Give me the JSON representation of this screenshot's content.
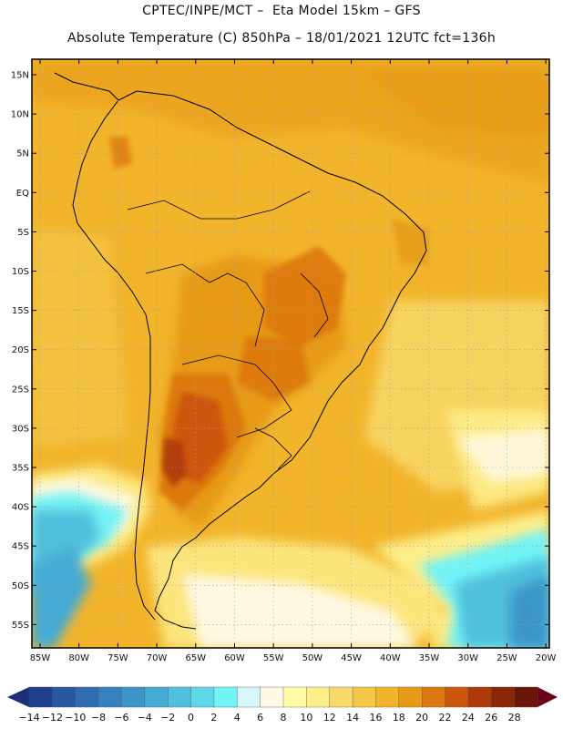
{
  "header": {
    "line1": "CPTEC/INPE/MCT –  Eta Model 15km – GFS",
    "line2": "Absolute Temperature (C) 850hPa – 18/01/2021 12UTC fct=136h"
  },
  "map": {
    "lat_labels": [
      "15N",
      "10N",
      "5N",
      "EQ",
      "5S",
      "10S",
      "15S",
      "20S",
      "25S",
      "30S",
      "35S",
      "40S",
      "45S",
      "50S",
      "55S"
    ],
    "lon_labels": [
      "85W",
      "80W",
      "75W",
      "70W",
      "65W",
      "60W",
      "55W",
      "50W",
      "45W",
      "40W",
      "35W",
      "30W",
      "25W",
      "20W"
    ]
  },
  "colorbar": {
    "labels": [
      "-14",
      "-12",
      "-10",
      "-8",
      "-6",
      "-4",
      "-2",
      "0",
      "2",
      "4",
      "6",
      "8",
      "10",
      "12",
      "14",
      "16",
      "18",
      "20",
      "22",
      "24",
      "26",
      "28"
    ],
    "colors": [
      "#1e3f8c",
      "#27589f",
      "#2f6db0",
      "#3682bf",
      "#3d96c9",
      "#45abd3",
      "#4fc0dd",
      "#5fd8ea",
      "#72f3f6",
      "#d6f6fb",
      "#fff8e3",
      "#fffaa6",
      "#fdee8a",
      "#f8d96a",
      "#f4c749",
      "#f2b42b",
      "#e69a18",
      "#dd7810",
      "#cc5609",
      "#ae3a08",
      "#8c2608",
      "#6a1608"
    ],
    "left_arrow_color": "#1b2f78",
    "right_arrow_color": "#6a0018"
  }
}
